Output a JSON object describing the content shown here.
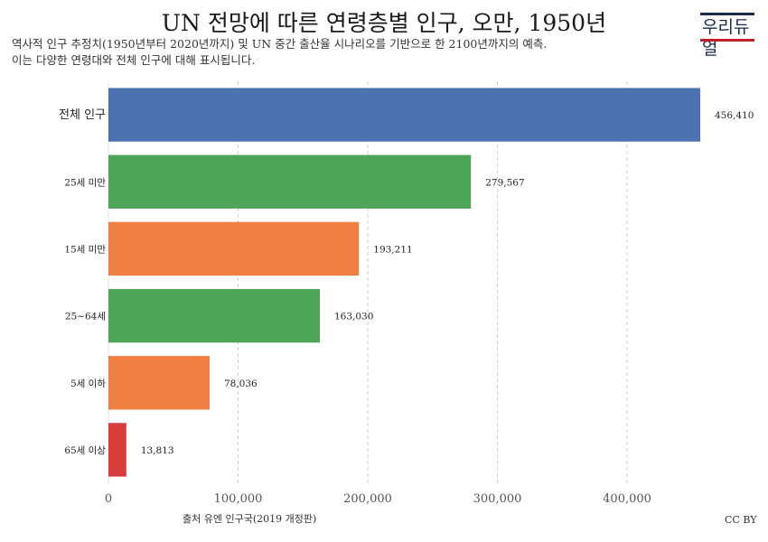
{
  "header": {
    "title": "UN 전망에 따른 연령층별 인구, 오만, 1950년",
    "subtitle_line1": "역사적 인구 추정치(1950년부터 2020년까지) 및 UN 중간 출산율 시나리오를 기반으로 한 2100년까지의 예측.",
    "subtitle_line2": "이는 다양한 연령대와 전체 인구에 대해 표시됩니다."
  },
  "logo": {
    "text": "우리듀얼"
  },
  "footer": {
    "source": "출처 유엔 인구국(2019 개정판)",
    "license": "CC BY"
  },
  "chart_data": {
    "type": "bar",
    "orientation": "horizontal",
    "categories": [
      "전체 인구",
      "25세 미만",
      "15세 미만",
      "25~64세",
      "5세 이하",
      "65세 이상"
    ],
    "values": [
      456410,
      279567,
      193211,
      163030,
      78036,
      13813
    ],
    "value_labels": [
      "456,410",
      "279,567",
      "193,211",
      "163,030",
      "78,036",
      "13,813"
    ],
    "colors": [
      "#4c72b0",
      "#4ea559",
      "#f07f44",
      "#4ea559",
      "#f07f44",
      "#d63e3e"
    ],
    "xticks": [
      0,
      100000,
      200000,
      300000,
      400000
    ],
    "xtick_labels": [
      "0",
      "100,000",
      "200,000",
      "300,000",
      "400,000"
    ],
    "xlim": [
      0,
      456410
    ],
    "grid": "vertical dashed"
  }
}
